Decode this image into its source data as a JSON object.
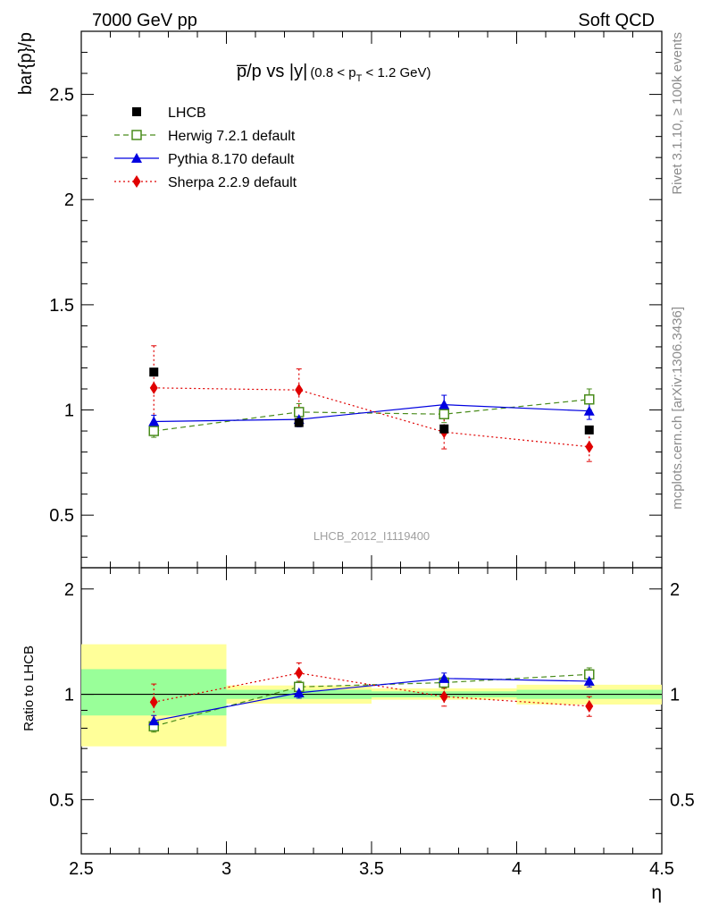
{
  "header": {
    "left": "7000 GeV pp",
    "right": "Soft QCD"
  },
  "side": {
    "rivet": "Rivet 3.1.10, ≥ 100k events",
    "mcplots": "mcplots.cern.ch [arXiv:1306.3436]"
  },
  "chart_data": {
    "type": "line",
    "title_main": "p̅/p vs |y|",
    "title_sub": "(0.8 < p",
    "title_sub_idx": "T",
    "title_sub_end": " < 1.2 GeV)",
    "analysis_label": "LHCB_2012_I1119400",
    "xlabel": "η",
    "ylabel": "bar{p}/p",
    "ratio_ylabel": "Ratio to LHCB",
    "xlim": [
      2.5,
      4.5
    ],
    "ylim": [
      0.25,
      2.8
    ],
    "ratio_ylim": [
      0.35,
      2.3
    ],
    "x_ticks": [
      "2.5",
      "3",
      "3.5",
      "4",
      "4.5"
    ],
    "y_ticks": [
      "0.5",
      "1",
      "1.5",
      "2",
      "2.5"
    ],
    "ratio_y_ticks": [
      "0.5",
      "1",
      "2"
    ],
    "x": [
      2.75,
      3.25,
      3.75,
      4.25
    ],
    "data": {
      "name": "LHCB",
      "values": [
        1.18,
        0.94,
        0.91,
        0.905
      ],
      "bins": [
        [
          2.5,
          3.0
        ],
        [
          3.0,
          3.5
        ],
        [
          3.5,
          4.0
        ],
        [
          4.0,
          4.5
        ]
      ],
      "ratio_band_inner": [
        [
          0.87,
          1.18
        ],
        [
          0.97,
          1.03
        ],
        [
          0.98,
          1.02
        ],
        [
          0.97,
          1.03
        ]
      ],
      "ratio_band_outer": [
        [
          0.71,
          1.39
        ],
        [
          0.94,
          1.06
        ],
        [
          0.965,
          1.04
        ],
        [
          0.935,
          1.065
        ]
      ]
    },
    "series": [
      {
        "name": "Herwig 7.2.1 default",
        "color": "#4a8c1c",
        "marker": "open-square",
        "dash": "6,4",
        "values": [
          0.9,
          0.99,
          0.98,
          1.05
        ],
        "errors": [
          0.03,
          0.04,
          0.04,
          0.05
        ],
        "ratio": [
          0.81,
          1.05,
          1.08,
          1.14
        ],
        "ratio_errors": [
          0.03,
          0.04,
          0.04,
          0.05
        ]
      },
      {
        "name": "Pythia 8.170 default",
        "color": "#0000e0",
        "marker": "triangle",
        "dash": "",
        "values": [
          0.945,
          0.955,
          1.025,
          0.995
        ],
        "errors": [
          0.03,
          0.035,
          0.045,
          0.04
        ],
        "ratio": [
          0.84,
          1.01,
          1.11,
          1.09
        ],
        "ratio_errors": [
          0.03,
          0.035,
          0.04,
          0.04
        ]
      },
      {
        "name": "Sherpa 2.2.9 default",
        "color": "#e00000",
        "marker": "diamond",
        "dash": "2,3",
        "values": [
          1.105,
          1.095,
          0.895,
          0.825
        ],
        "errors": [
          0.2,
          0.1,
          0.08,
          0.07
        ],
        "ratio": [
          0.95,
          1.15,
          0.985,
          0.925
        ],
        "ratio_errors": [
          0.12,
          0.08,
          0.06,
          0.06
        ]
      }
    ]
  }
}
